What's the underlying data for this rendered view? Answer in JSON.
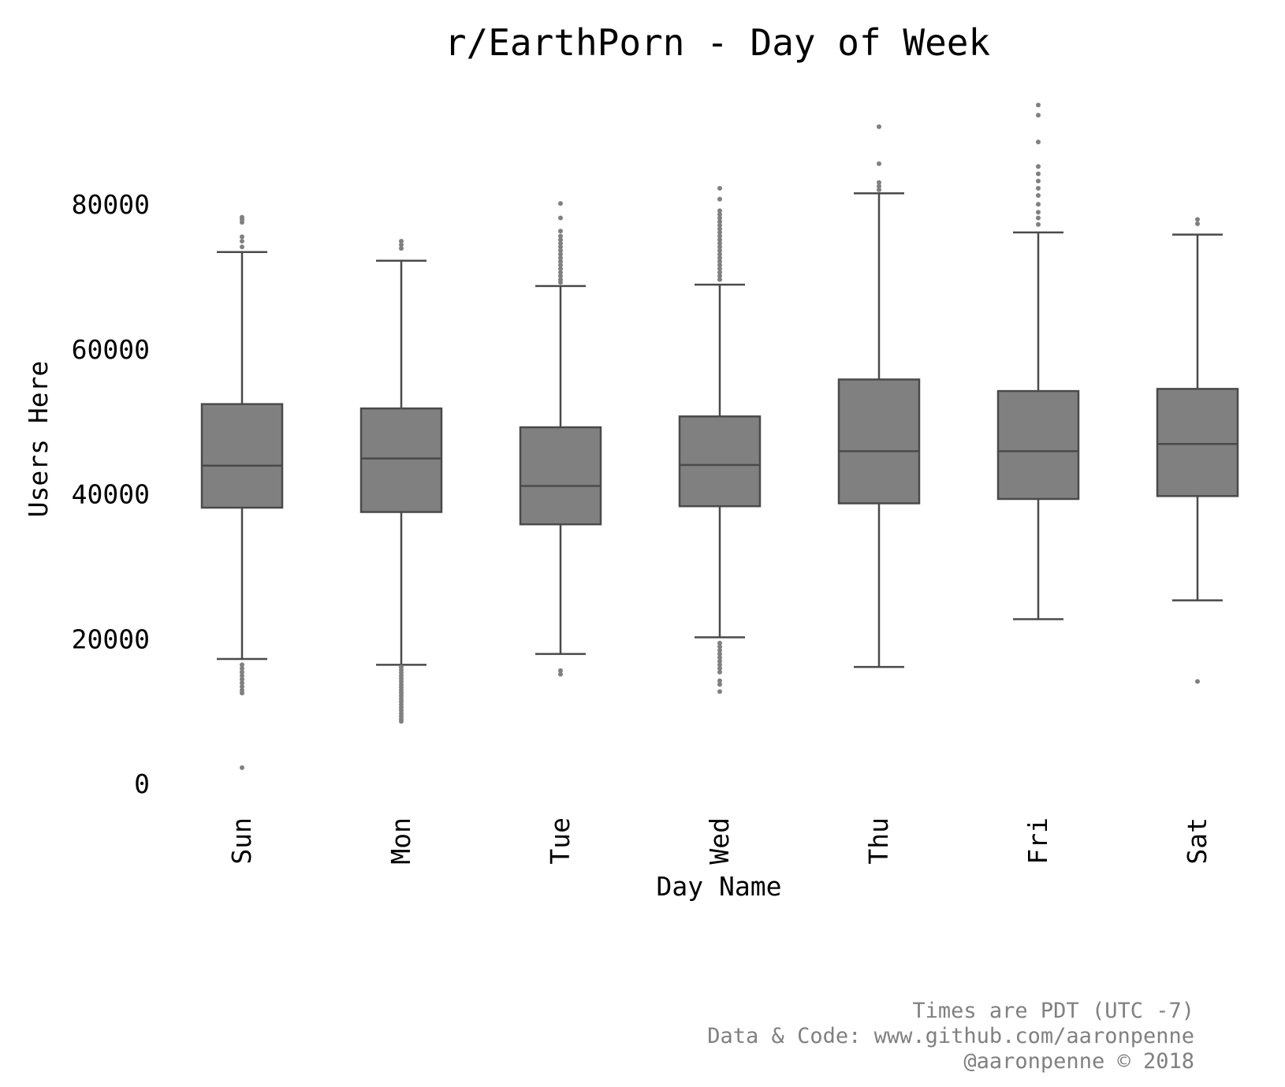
{
  "chart_data": {
    "type": "box",
    "title": "r/EarthPorn - Day of Week",
    "xlabel": "Day Name",
    "ylabel": "Users Here",
    "ylim": [
      -2000,
      96000
    ],
    "yticks": [
      0,
      20000,
      40000,
      60000,
      80000
    ],
    "ytick_labels": [
      "0",
      "20000",
      "40000",
      "60000",
      "80000"
    ],
    "grid": false,
    "colors": {
      "box_fill": "#808080",
      "box_edge": "#4a4a4a",
      "outlier": "#808080",
      "text": "#000000",
      "footnote": "#808080"
    },
    "categories": [
      "Sun",
      "Mon",
      "Tue",
      "Wed",
      "Thu",
      "Fri",
      "Sat"
    ],
    "boxes": [
      {
        "label": "Sun",
        "whisker_low": 17300,
        "q1": 38200,
        "median": 44000,
        "q3": 52500,
        "whisker_high": 73500,
        "outliers": [
          78300,
          78000,
          77600,
          75600,
          75000,
          74200,
          16500,
          16000,
          15500,
          15000,
          14500,
          14000,
          13500,
          13000,
          12600,
          2300
        ]
      },
      {
        "label": "Mon",
        "whisker_low": 16500,
        "q1": 37600,
        "median": 45000,
        "q3": 51900,
        "whisker_high": 72300,
        "outliers": [
          75000,
          74500,
          74000,
          16200,
          15800,
          15400,
          15000,
          14600,
          14200,
          13800,
          13400,
          13000,
          12600,
          12200,
          11800,
          11400,
          11000,
          10600,
          10200,
          9800,
          9400,
          9000,
          8700
        ]
      },
      {
        "label": "Tue",
        "whisker_low": 18000,
        "q1": 35900,
        "median": 41200,
        "q3": 49300,
        "whisker_high": 68800,
        "outliers": [
          80200,
          78200,
          76400,
          75700,
          75200,
          74700,
          74200,
          73700,
          73200,
          72700,
          72200,
          71700,
          71200,
          70700,
          70200,
          69700,
          69300,
          15700,
          15200
        ]
      },
      {
        "label": "Wed",
        "whisker_low": 20300,
        "q1": 38400,
        "median": 44100,
        "q3": 50800,
        "whisker_high": 69000,
        "outliers": [
          82300,
          80800,
          79200,
          78700,
          78200,
          77700,
          77200,
          76700,
          76200,
          75700,
          75200,
          74700,
          74200,
          73700,
          73200,
          72700,
          72200,
          71700,
          71200,
          70700,
          70200,
          69700,
          19500,
          19000,
          18500,
          18000,
          17500,
          17000,
          16500,
          16000,
          15500,
          14300,
          13800,
          12800
        ]
      },
      {
        "label": "Thu",
        "whisker_low": 16200,
        "q1": 38800,
        "median": 46000,
        "q3": 55900,
        "whisker_high": 81600,
        "outliers": [
          90800,
          85700,
          83100,
          82600,
          82100
        ]
      },
      {
        "label": "Fri",
        "whisker_low": 22800,
        "q1": 39400,
        "median": 46000,
        "q3": 54300,
        "whisker_high": 76200,
        "outliers": [
          93800,
          92400,
          88700,
          85300,
          84300,
          83300,
          82300,
          81300,
          80100,
          79000,
          78200,
          77300
        ]
      },
      {
        "label": "Sat",
        "whisker_low": 25400,
        "q1": 39800,
        "median": 47000,
        "q3": 54600,
        "whisker_high": 75900,
        "outliers": [
          78000,
          77400,
          14200
        ]
      }
    ],
    "footnotes": [
      "Times are PDT (UTC -7)",
      "Data & Code: www.github.com/aaronpenne",
      "@aaronpenne © 2018"
    ]
  }
}
